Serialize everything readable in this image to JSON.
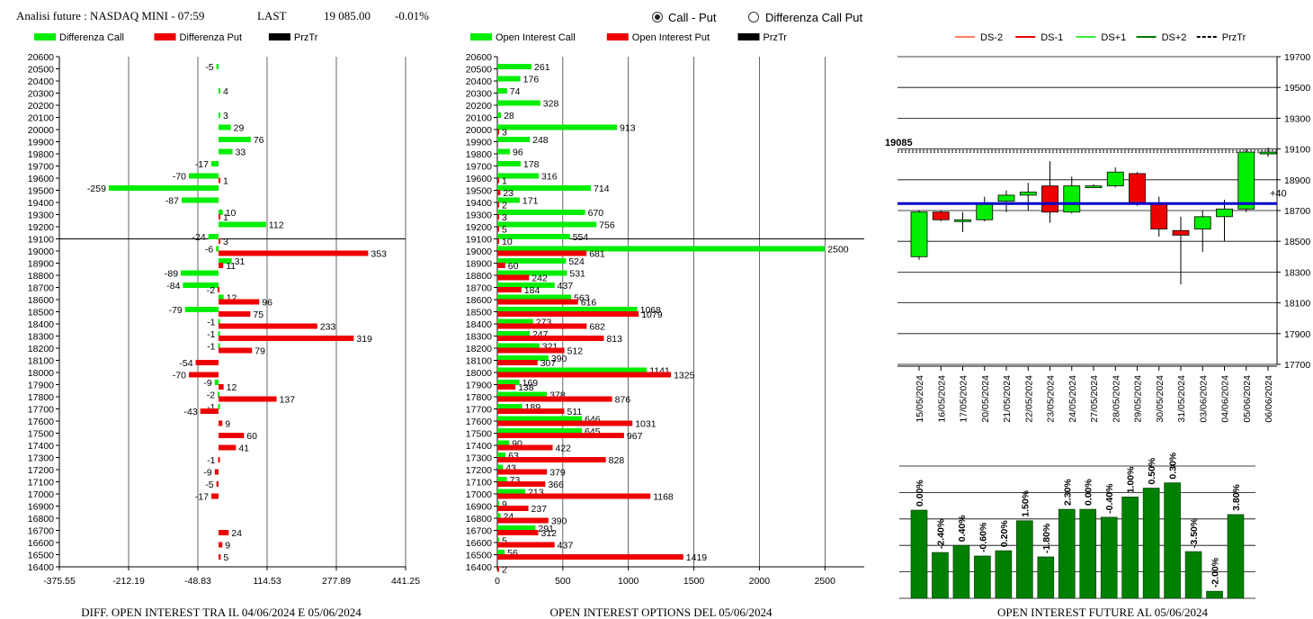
{
  "header": {
    "title": "Analisi future : NASDAQ MINI - 07:59",
    "last_label": "LAST",
    "last_value": "19 085.00",
    "change": "-0.01%"
  },
  "toggle": {
    "option1": "Call - Put",
    "option2": "Differenza Call Put",
    "selected": "Call - Put"
  },
  "colors": {
    "call": "#00ee00",
    "put": "#ee0000",
    "prztr": "#000000",
    "blue_line": "#0000cc",
    "oi_bar": "#008000"
  },
  "chart_data": [
    {
      "type": "bar",
      "orientation": "horizontal",
      "title": "DIFF. OPEN INTEREST TRA IL 04/06/2024 E 05/06/2024",
      "legend": [
        "Differenza Call",
        "Differenza Put",
        "PrzTr"
      ],
      "y_ticks": [
        "20600",
        "20500",
        "20400",
        "20300",
        "20200",
        "20100",
        "20000",
        "19900",
        "19800",
        "19700",
        "19600",
        "19500",
        "19400",
        "19300",
        "19200",
        "19100",
        "19000",
        "18900",
        "18800",
        "18700",
        "18600",
        "18500",
        "18400",
        "18300",
        "18200",
        "18100",
        "18000",
        "17900",
        "17800",
        "17700",
        "17600",
        "17500",
        "17400",
        "17300",
        "17200",
        "17100",
        "17000",
        "16900",
        "16800",
        "16700",
        "16600",
        "16500",
        "16400"
      ],
      "x_ticks": [
        "-375.55",
        "-212.19",
        "-48.83",
        "114.53",
        "277.89",
        "441.25"
      ],
      "xlim": [
        -375.55,
        441.25
      ],
      "prztr_level": 19100,
      "call": [
        {
          "strike": 20500,
          "value": -5
        },
        {
          "strike": 20300,
          "value": 4
        },
        {
          "strike": 20100,
          "value": 3
        },
        {
          "strike": 20000,
          "value": 29
        },
        {
          "strike": 19900,
          "value": 76
        },
        {
          "strike": 19800,
          "value": 33
        },
        {
          "strike": 19700,
          "value": -17
        },
        {
          "strike": 19600,
          "value": -70
        },
        {
          "strike": 19500,
          "value": -259
        },
        {
          "strike": 19400,
          "value": -87
        },
        {
          "strike": 19300,
          "value": 10
        },
        {
          "strike": 19200,
          "value": 112
        },
        {
          "strike": 19100,
          "value": -24
        },
        {
          "strike": 19000,
          "value": -6
        },
        {
          "strike": 18900,
          "value": 31
        },
        {
          "strike": 18800,
          "value": -89
        },
        {
          "strike": 18700,
          "value": -84
        },
        {
          "strike": 18600,
          "value": 12
        },
        {
          "strike": 18500,
          "value": -79
        },
        {
          "strike": 18400,
          "value": -1
        },
        {
          "strike": 18300,
          "value": -1
        },
        {
          "strike": 18200,
          "value": -1
        },
        {
          "strike": 17900,
          "value": -9
        },
        {
          "strike": 17800,
          "value": -2
        },
        {
          "strike": 17700,
          "value": -1
        }
      ],
      "put": [
        {
          "strike": 19600,
          "value": 1
        },
        {
          "strike": 19300,
          "value": 1
        },
        {
          "strike": 19100,
          "value": 3
        },
        {
          "strike": 19000,
          "value": 353
        },
        {
          "strike": 18900,
          "value": 11
        },
        {
          "strike": 18700,
          "value": -2
        },
        {
          "strike": 18600,
          "value": 96
        },
        {
          "strike": 18500,
          "value": 75
        },
        {
          "strike": 18400,
          "value": 233
        },
        {
          "strike": 18300,
          "value": 319
        },
        {
          "strike": 18200,
          "value": 79
        },
        {
          "strike": 18100,
          "value": -54
        },
        {
          "strike": 18000,
          "value": -70
        },
        {
          "strike": 17900,
          "value": 12
        },
        {
          "strike": 17800,
          "value": 137
        },
        {
          "strike": 17700,
          "value": -43
        },
        {
          "strike": 17600,
          "value": 9
        },
        {
          "strike": 17500,
          "value": 60
        },
        {
          "strike": 17400,
          "value": 41
        },
        {
          "strike": 17300,
          "value": -1
        },
        {
          "strike": 17200,
          "value": -9
        },
        {
          "strike": 17100,
          "value": -5
        },
        {
          "strike": 17000,
          "value": -17
        },
        {
          "strike": 16700,
          "value": 24
        },
        {
          "strike": 16600,
          "value": 9
        },
        {
          "strike": 16500,
          "value": 5
        }
      ]
    },
    {
      "type": "bar",
      "orientation": "horizontal",
      "title": "OPEN INTEREST OPTIONS DEL 05/06/2024",
      "legend": [
        "Open Interest Call",
        "Open Interest Put",
        "PrzTr"
      ],
      "y_ticks": [
        "20600",
        "20500",
        "20400",
        "20300",
        "20200",
        "20100",
        "20000",
        "19900",
        "19800",
        "19700",
        "19600",
        "19500",
        "19400",
        "19300",
        "19200",
        "19100",
        "19000",
        "18900",
        "18800",
        "18700",
        "18600",
        "18500",
        "18400",
        "18300",
        "18200",
        "18100",
        "18000",
        "17900",
        "17800",
        "17700",
        "17600",
        "17500",
        "17400",
        "17300",
        "17200",
        "17100",
        "17000",
        "16900",
        "16800",
        "16700",
        "16600",
        "16500",
        "16400"
      ],
      "x_ticks": [
        "0",
        "500",
        "1000",
        "1500",
        "2000",
        "2500"
      ],
      "xlim": [
        0,
        2800
      ],
      "prztr_level": 19100,
      "call": [
        {
          "strike": 20500,
          "value": 261
        },
        {
          "strike": 20400,
          "value": 176
        },
        {
          "strike": 20300,
          "value": 74
        },
        {
          "strike": 20200,
          "value": 328
        },
        {
          "strike": 20100,
          "value": 28
        },
        {
          "strike": 20000,
          "value": 913
        },
        {
          "strike": 19900,
          "value": 248
        },
        {
          "strike": 19800,
          "value": 96
        },
        {
          "strike": 19700,
          "value": 178
        },
        {
          "strike": 19600,
          "value": 316
        },
        {
          "strike": 19500,
          "value": 714
        },
        {
          "strike": 19400,
          "value": 171
        },
        {
          "strike": 19300,
          "value": 670
        },
        {
          "strike": 19200,
          "value": 756
        },
        {
          "strike": 19100,
          "value": 554
        },
        {
          "strike": 19000,
          "value": 2500
        },
        {
          "strike": 18900,
          "value": 524
        },
        {
          "strike": 18800,
          "value": 531
        },
        {
          "strike": 18700,
          "value": 437
        },
        {
          "strike": 18600,
          "value": 563
        },
        {
          "strike": 18500,
          "value": 1068
        },
        {
          "strike": 18400,
          "value": 273
        },
        {
          "strike": 18300,
          "value": 247
        },
        {
          "strike": 18200,
          "value": 321
        },
        {
          "strike": 18100,
          "value": 390
        },
        {
          "strike": 18000,
          "value": 1141
        },
        {
          "strike": 17900,
          "value": 169
        },
        {
          "strike": 17800,
          "value": 378
        },
        {
          "strike": 17700,
          "value": 189
        },
        {
          "strike": 17600,
          "value": 646
        },
        {
          "strike": 17500,
          "value": 645
        },
        {
          "strike": 17400,
          "value": 90
        },
        {
          "strike": 17300,
          "value": 63
        },
        {
          "strike": 17200,
          "value": 43
        },
        {
          "strike": 17100,
          "value": 73
        },
        {
          "strike": 17000,
          "value": 213
        },
        {
          "strike": 16900,
          "value": 9
        },
        {
          "strike": 16800,
          "value": 24
        },
        {
          "strike": 16700,
          "value": 291
        },
        {
          "strike": 16600,
          "value": 5
        },
        {
          "strike": 16500,
          "value": 56
        }
      ],
      "put": [
        {
          "strike": 20000,
          "value": 3
        },
        {
          "strike": 19600,
          "value": 1
        },
        {
          "strike": 19500,
          "value": 23
        },
        {
          "strike": 19400,
          "value": 2
        },
        {
          "strike": 19300,
          "value": 3
        },
        {
          "strike": 19200,
          "value": 5
        },
        {
          "strike": 19100,
          "value": 10
        },
        {
          "strike": 19000,
          "value": 681
        },
        {
          "strike": 18900,
          "value": 60
        },
        {
          "strike": 18800,
          "value": 242
        },
        {
          "strike": 18700,
          "value": 184
        },
        {
          "strike": 18600,
          "value": 616
        },
        {
          "strike": 18500,
          "value": 1079
        },
        {
          "strike": 18400,
          "value": 682
        },
        {
          "strike": 18300,
          "value": 813
        },
        {
          "strike": 18200,
          "value": 512
        },
        {
          "strike": 18100,
          "value": 307
        },
        {
          "strike": 18000,
          "value": 1325
        },
        {
          "strike": 17900,
          "value": 138
        },
        {
          "strike": 17800,
          "value": 876
        },
        {
          "strike": 17700,
          "value": 511
        },
        {
          "strike": 17600,
          "value": 1031
        },
        {
          "strike": 17500,
          "value": 967
        },
        {
          "strike": 17400,
          "value": 422
        },
        {
          "strike": 17300,
          "value": 828
        },
        {
          "strike": 17200,
          "value": 379
        },
        {
          "strike": 17100,
          "value": 366
        },
        {
          "strike": 17000,
          "value": 1168
        },
        {
          "strike": 16900,
          "value": 237
        },
        {
          "strike": 16800,
          "value": 390
        },
        {
          "strike": 16700,
          "value": 312
        },
        {
          "strike": 16600,
          "value": 437
        },
        {
          "strike": 16500,
          "value": 1419
        },
        {
          "strike": 16400,
          "value": 2
        }
      ]
    },
    {
      "type": "candlestick",
      "legend": [
        "DS-2",
        "DS-1",
        "DS+1",
        "DS+2",
        "PrzTr"
      ],
      "y_ticks": [
        "19700",
        "19500",
        "19300",
        "19100",
        "18900",
        "18700",
        "18500",
        "18300",
        "18100",
        "17900",
        "17700"
      ],
      "ylim": [
        17700,
        19700
      ],
      "dates": [
        "15/05/2024",
        "16/05/2024",
        "17/05/2024",
        "20/05/2024",
        "21/05/2024",
        "22/05/2024",
        "23/05/2024",
        "24/05/2024",
        "27/05/2024",
        "28/05/2024",
        "29/05/2024",
        "30/05/2024",
        "31/05/2024",
        "03/06/2024",
        "04/06/2024",
        "05/06/2024",
        "06/06/2024"
      ],
      "last_label": "19085",
      "last_price": 19085,
      "blue_level": 18745,
      "blue_label": "+40",
      "candles": [
        {
          "o": 18400,
          "c": 18690,
          "h": 18700,
          "l": 18380
        },
        {
          "o": 18690,
          "c": 18640,
          "h": 18700,
          "l": 18630
        },
        {
          "o": 18640,
          "c": 18640,
          "h": 18690,
          "l": 18560
        },
        {
          "o": 18640,
          "c": 18750,
          "h": 18790,
          "l": 18630
        },
        {
          "o": 18760,
          "c": 18800,
          "h": 18830,
          "l": 18690
        },
        {
          "o": 18800,
          "c": 18820,
          "h": 18880,
          "l": 18700
        },
        {
          "o": 18860,
          "c": 18690,
          "h": 19020,
          "l": 18620
        },
        {
          "o": 18690,
          "c": 18860,
          "h": 18920,
          "l": 18680
        },
        {
          "o": 18860,
          "c": 18860,
          "h": 18870,
          "l": 18850
        },
        {
          "o": 18860,
          "c": 18950,
          "h": 18980,
          "l": 18850
        },
        {
          "o": 18940,
          "c": 18750,
          "h": 18950,
          "l": 18730
        },
        {
          "o": 18750,
          "c": 18580,
          "h": 18790,
          "l": 18530
        },
        {
          "o": 18570,
          "c": 18540,
          "h": 18660,
          "l": 18220
        },
        {
          "o": 18580,
          "c": 18660,
          "h": 18700,
          "l": 18430
        },
        {
          "o": 18660,
          "c": 18710,
          "h": 18770,
          "l": 18500
        },
        {
          "o": 18710,
          "c": 19080,
          "h": 19100,
          "l": 18690
        },
        {
          "o": 19080,
          "c": 19080,
          "h": 19110,
          "l": 19050
        }
      ]
    },
    {
      "type": "bar",
      "title": "OPEN INTEREST FUTURE AL 05/06/2024",
      "labels": [
        "0.00%",
        "-2.40%",
        "0.40%",
        "-0.60%",
        "0.20%",
        "1.50%",
        "-1.80%",
        "2.30%",
        "0.00%",
        "-0.40%",
        "1.00%",
        "0.50%",
        "0.30%",
        "-3.50%",
        "-2.00%",
        "3.80%"
      ],
      "values": [
        100,
        52,
        60,
        48,
        54,
        88,
        47,
        101,
        101,
        92,
        115,
        125,
        131,
        53,
        8,
        95
      ],
      "ylim": [
        0,
        150
      ]
    }
  ]
}
